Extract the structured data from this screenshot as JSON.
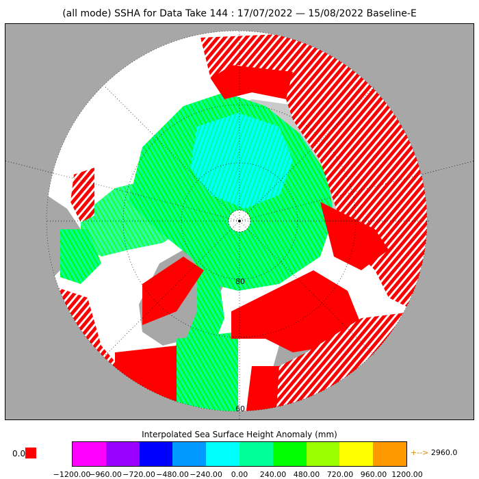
{
  "title": "(all mode) SSHA for Data Take 144 : 17/07/2022 — 15/08/2022 Baseline-E",
  "map": {
    "lat_labels": [
      "80",
      "60"
    ],
    "colors": {
      "land": "#a7a7a7",
      "ocean": "#ffffff",
      "red": "#ff0000",
      "green": "#00ff99",
      "cyan": "#00ffff",
      "bright_green": "#00ff00"
    }
  },
  "colorbar": {
    "title": "Interpolated Sea Surface Height Anomaly (mm)",
    "colors": [
      "#ff00ff",
      "#9900ff",
      "#0000ff",
      "#0099ff",
      "#00ffff",
      "#00ff99",
      "#00ff00",
      "#99ff00",
      "#ffff00",
      "#ff9900"
    ],
    "ticks": [
      "−1200.00",
      "−960.00",
      "−720.00",
      "−480.00",
      "−240.00",
      "0.00",
      "240.00",
      "480.00",
      "720.00",
      "960.00",
      "1200.00"
    ],
    "nodata_label": "0.0",
    "nodata_color": "#ff0000",
    "overflow_arrow": "+-->",
    "overflow_value": "2960.0"
  }
}
